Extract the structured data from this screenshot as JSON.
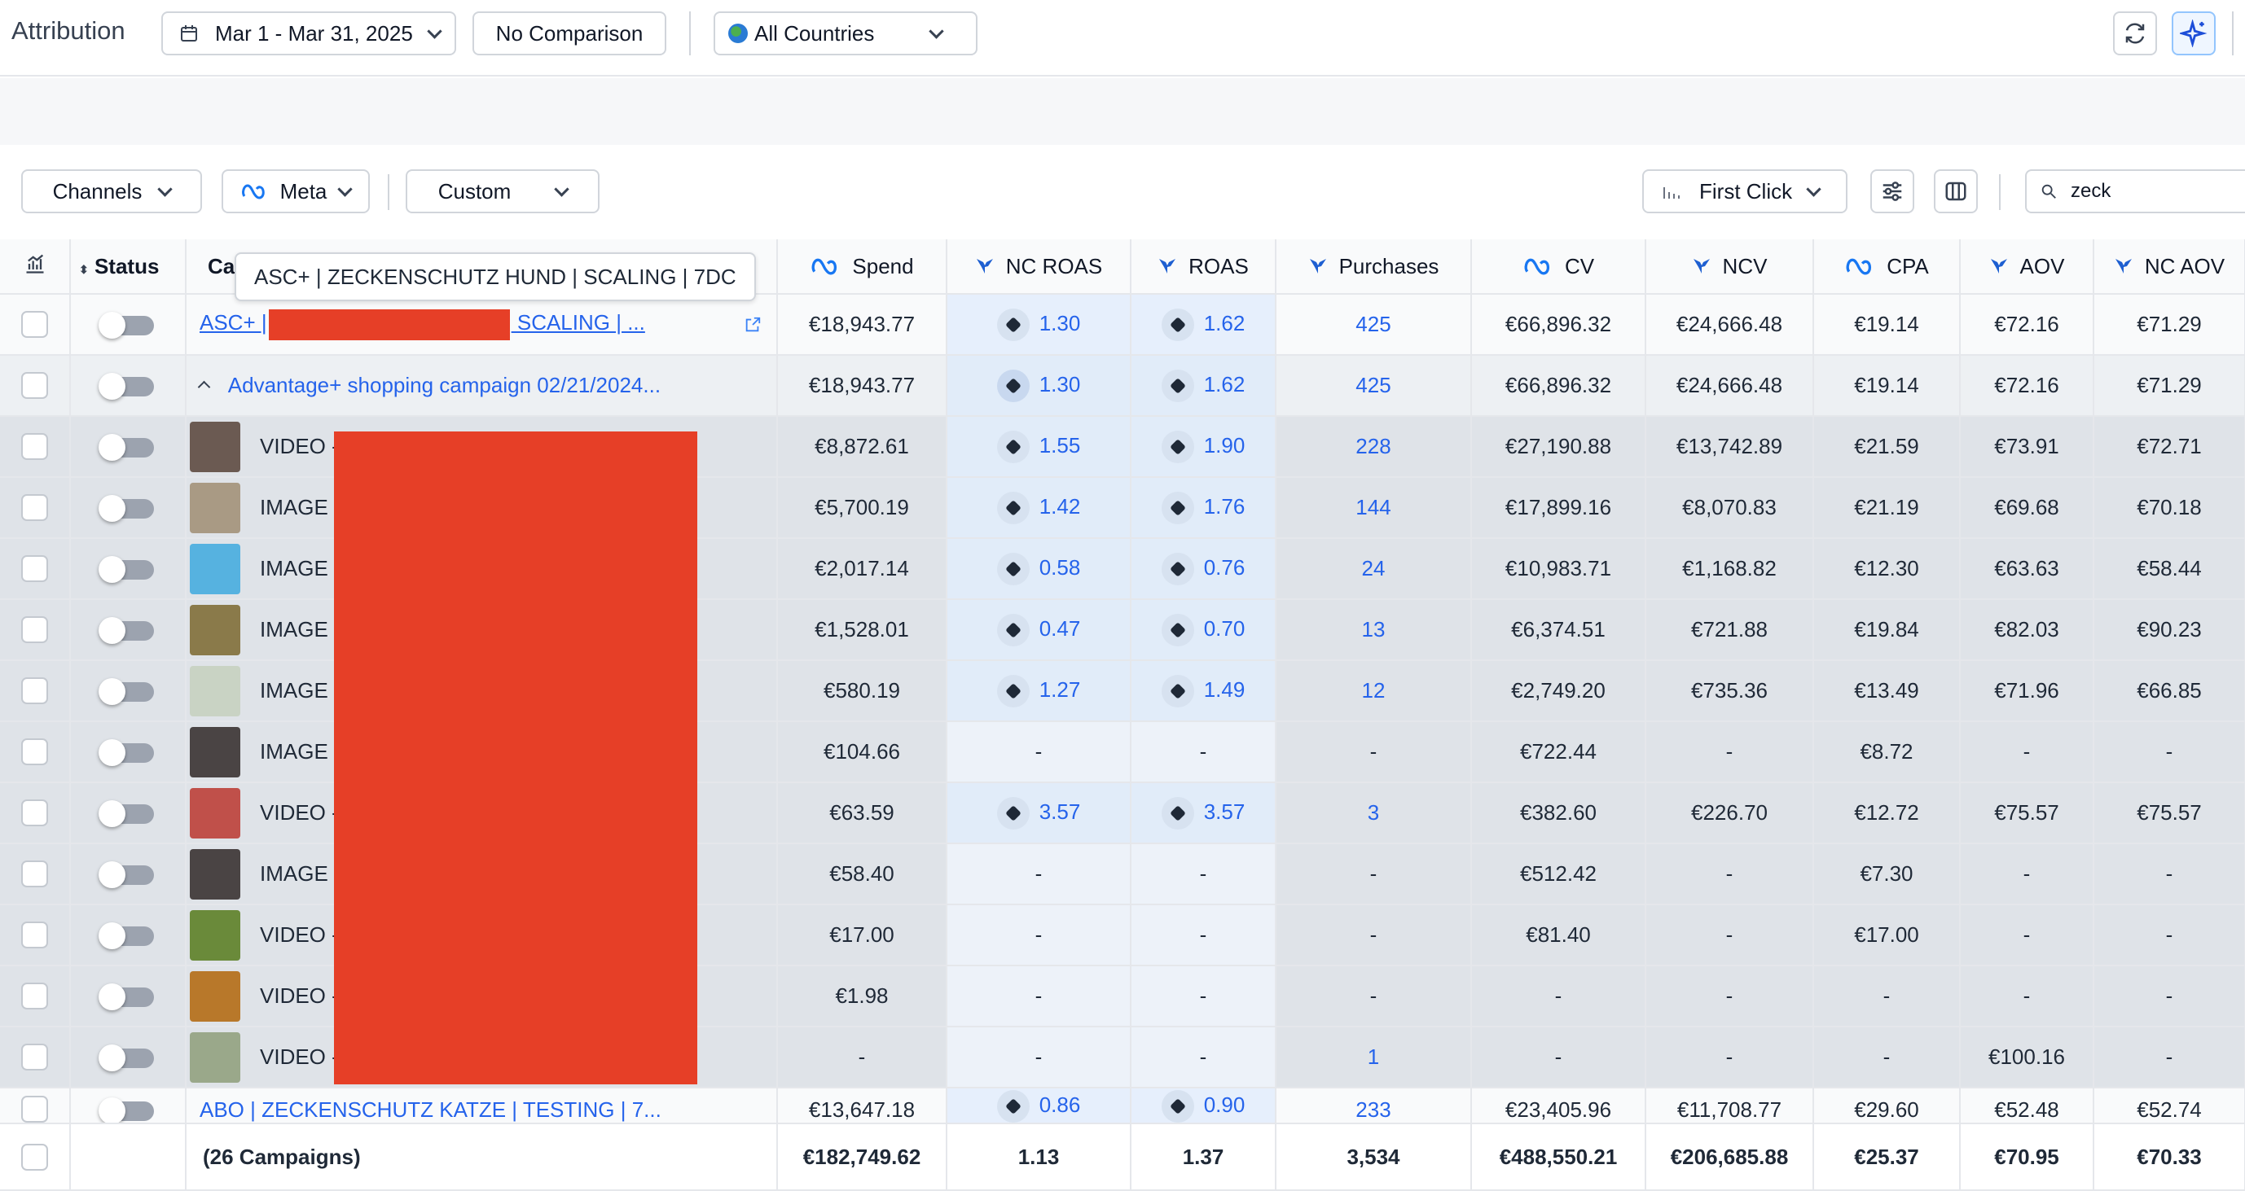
{
  "header": {
    "title": "Attribution",
    "date_range": "Mar 1 - Mar 31, 2025",
    "comparison": "No Comparison",
    "country": "All Countries"
  },
  "filters": {
    "channels": "Channels",
    "platform": "Meta",
    "custom": "Custom",
    "attribution_model": "First Click",
    "search_value": "zeck"
  },
  "tooltip": "ASC+ | ZECKENSCHUTZ HUND | SCALING | 7DC",
  "columns": {
    "status": "Status",
    "campaign": "Ca",
    "spend": "Spend",
    "nc_roas": "NC ROAS",
    "roas": "ROAS",
    "purchases": "Purchases",
    "cv": "CV",
    "ncv": "NCV",
    "cpa": "CPA",
    "aov": "AOV",
    "nc_aov": "NC AOV"
  },
  "campaign_row": {
    "name_start": "ASC+ |",
    "name_end": " SCALING | ...",
    "spend": "€18,943.77",
    "nc_roas": "1.30",
    "roas": "1.62",
    "purchases": "425",
    "cv": "€66,896.32",
    "ncv": "€24,666.48",
    "cpa": "€19.14",
    "aov": "€72.16",
    "nc_aov": "€71.29"
  },
  "adset_row": {
    "name": "Advantage+ shopping campaign 02/21/2024...",
    "spend": "€18,943.77",
    "nc_roas": "1.30",
    "roas": "1.62",
    "purchases": "425",
    "cv": "€66,896.32",
    "ncv": "€24,666.48",
    "cpa": "€19.14",
    "aov": "€72.16",
    "nc_aov": "€71.29"
  },
  "ads": [
    {
      "type": "VIDEO -",
      "spend": "€8,872.61",
      "nc_roas": "1.55",
      "roas": "1.90",
      "purchases": "228",
      "cv": "€27,190.88",
      "ncv": "€13,742.89",
      "cpa": "€21.59",
      "aov": "€73.91",
      "nc_aov": "€72.71",
      "thumb": "#6b5a52"
    },
    {
      "type": "IMAGE -",
      "spend": "€5,700.19",
      "nc_roas": "1.42",
      "roas": "1.76",
      "purchases": "144",
      "cv": "€17,899.16",
      "ncv": "€8,070.83",
      "cpa": "€21.19",
      "aov": "€69.68",
      "nc_aov": "€70.18",
      "thumb": "#a99a84"
    },
    {
      "type": "IMAGE -",
      "spend": "€2,017.14",
      "nc_roas": "0.58",
      "roas": "0.76",
      "purchases": "24",
      "cv": "€10,983.71",
      "ncv": "€1,168.82",
      "cpa": "€12.30",
      "aov": "€63.63",
      "nc_aov": "€58.44",
      "thumb": "#56b2e0"
    },
    {
      "type": "IMAGE -",
      "spend": "€1,528.01",
      "nc_roas": "0.47",
      "roas": "0.70",
      "purchases": "13",
      "cv": "€6,374.51",
      "ncv": "€721.88",
      "cpa": "€19.84",
      "aov": "€82.03",
      "nc_aov": "€90.23",
      "thumb": "#8a7a4a"
    },
    {
      "type": "IMAGE -",
      "spend": "€580.19",
      "nc_roas": "1.27",
      "roas": "1.49",
      "purchases": "12",
      "cv": "€2,749.20",
      "ncv": "€735.36",
      "cpa": "€13.49",
      "aov": "€71.96",
      "nc_aov": "€66.85",
      "thumb": "#c9d3c4"
    },
    {
      "type": "IMAGE -",
      "spend": "€104.66",
      "nc_roas": "-",
      "roas": "-",
      "purchases": "-",
      "cv": "€722.44",
      "ncv": "-",
      "cpa": "€8.72",
      "aov": "-",
      "nc_aov": "-",
      "thumb": "#4a4444"
    },
    {
      "type": "VIDEO -",
      "spend": "€63.59",
      "nc_roas": "3.57",
      "roas": "3.57",
      "purchases": "3",
      "cv": "€382.60",
      "ncv": "€226.70",
      "cpa": "€12.72",
      "aov": "€75.57",
      "nc_aov": "€75.57",
      "thumb": "#c0504a"
    },
    {
      "type": "IMAGE -",
      "spend": "€58.40",
      "nc_roas": "-",
      "roas": "-",
      "purchases": "-",
      "cv": "€512.42",
      "ncv": "-",
      "cpa": "€7.30",
      "aov": "-",
      "nc_aov": "-",
      "thumb": "#4a4444"
    },
    {
      "type": "VIDEO -",
      "spend": "€17.00",
      "nc_roas": "-",
      "roas": "-",
      "purchases": "-",
      "cv": "€81.40",
      "ncv": "-",
      "cpa": "€17.00",
      "aov": "-",
      "nc_aov": "-",
      "thumb": "#6a8a3a"
    },
    {
      "type": "VIDEO -",
      "spend": "€1.98",
      "nc_roas": "-",
      "roas": "-",
      "purchases": "-",
      "cv": "-",
      "ncv": "-",
      "cpa": "-",
      "aov": "-",
      "nc_aov": "-",
      "thumb": "#b8782a"
    },
    {
      "type": "VIDEO -",
      "spend": "-",
      "nc_roas": "-",
      "roas": "-",
      "purchases": "1",
      "cv": "-",
      "ncv": "-",
      "cpa": "-",
      "aov": "€100.16",
      "nc_aov": "-",
      "thumb": "#9aa88a"
    }
  ],
  "next_campaign": {
    "name": "ABO | ZECKENSCHUTZ KATZE | TESTING | 7...",
    "spend": "€13,647.18",
    "nc_roas": "0.86",
    "roas": "0.90",
    "purchases": "233",
    "cv": "€23,405.96",
    "ncv": "€11,708.77",
    "cpa": "€29.60",
    "aov": "€52.48",
    "nc_aov": "€52.74"
  },
  "totals": {
    "label": "(26 Campaigns)",
    "spend": "€182,749.62",
    "nc_roas": "1.13",
    "roas": "1.37",
    "purchases": "3,534",
    "cv": "€488,550.21",
    "ncv": "€206,685.88",
    "cpa": "€25.37",
    "aov": "€70.95",
    "nc_aov": "€70.33"
  },
  "colors": {
    "link": "#2563eb",
    "redaction": "#e63f27",
    "meta_blue": "#1877f2",
    "triple_whale_blue": "#1e5fd1"
  }
}
